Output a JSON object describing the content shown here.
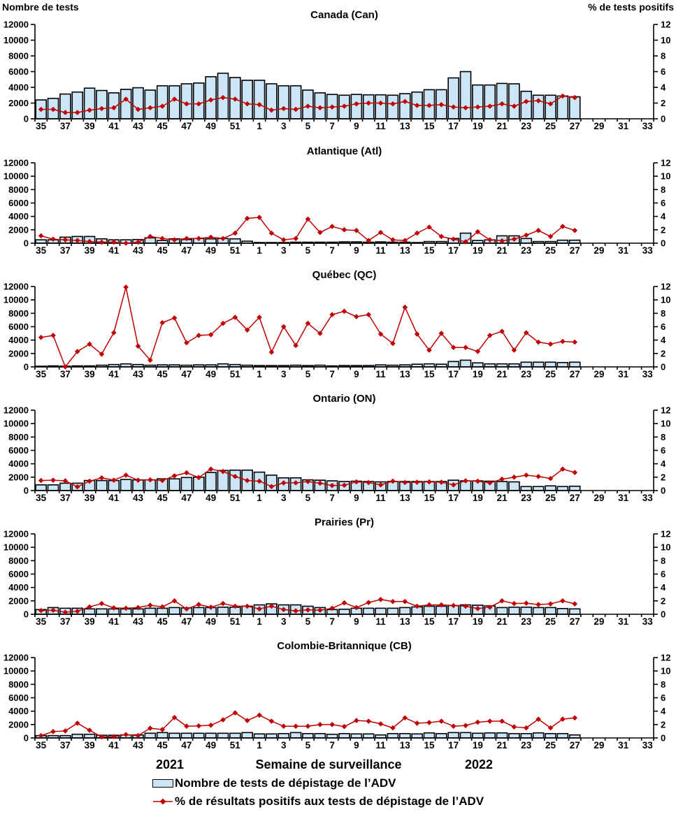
{
  "header": {
    "left_axis_title": "Nombre de tests",
    "right_axis_title": "% de tests positifs"
  },
  "footer": {
    "year_left": "2021",
    "x_axis_title": "Semaine de surveillance",
    "year_right": "2022"
  },
  "legend": {
    "bars_label": "Nombre de tests de dépistage de l’ADV",
    "line_label": "% de résultats positifs aux tests de dépistage de l’ADV"
  },
  "colors": {
    "bar_fill": "#CCE5F7",
    "bar_stroke": "#000000",
    "line": "#C00000",
    "axis": "#000000",
    "text": "#000000"
  },
  "chart_data": {
    "type": "multi-panel bar+line combo",
    "categories": [
      "35",
      "36",
      "37",
      "38",
      "39",
      "40",
      "41",
      "42",
      "43",
      "44",
      "45",
      "46",
      "47",
      "48",
      "49",
      "50",
      "51",
      "52",
      "1",
      "2",
      "3",
      "4",
      "5",
      "6",
      "7",
      "8",
      "9",
      "10",
      "11",
      "12",
      "13",
      "14",
      "15",
      "16",
      "17",
      "18",
      "19",
      "20",
      "21",
      "22",
      "23",
      "24",
      "25",
      "26",
      "27",
      "28",
      "29",
      "30",
      "31",
      "32",
      "33"
    ],
    "category_label_step": 2,
    "left_ylabel": "Nombre de tests",
    "right_ylabel": "% de tests positifs",
    "left_ylim": [
      0,
      12000
    ],
    "right_ylim": [
      0,
      12
    ],
    "left_yticks": [
      0,
      2000,
      4000,
      6000,
      8000,
      10000,
      12000
    ],
    "right_yticks": [
      0,
      2,
      4,
      6,
      8,
      10,
      12
    ],
    "grid": false,
    "panels": [
      {
        "title": "Canada (Can)",
        "series": [
          {
            "name": "Nombre de tests de dépistage de l’ADV",
            "type": "bar",
            "axis": "left",
            "values": [
              2400,
              2600,
              3150,
              3400,
              3900,
              3600,
              3300,
              3750,
              3950,
              3650,
              4200,
              4200,
              4450,
              4550,
              5350,
              5800,
              5250,
              4900,
              4900,
              4450,
              4200,
              4200,
              3650,
              3300,
              3100,
              3000,
              3100,
              3050,
              3050,
              3000,
              3200,
              3400,
              3700,
              3700,
              5200,
              6000,
              4300,
              4300,
              4500,
              4450,
              3500,
              3000,
              3000,
              2900,
              2800
            ]
          },
          {
            "name": "% de résultats positifs aux tests de dépistage de l’ADV",
            "type": "line",
            "axis": "right",
            "values": [
              1.2,
              1.2,
              0.8,
              0.8,
              1.1,
              1.3,
              1.4,
              2.5,
              1.2,
              1.4,
              1.6,
              2.5,
              1.9,
              1.9,
              2.4,
              2.7,
              2.5,
              1.9,
              1.8,
              1.1,
              1.3,
              1.2,
              1.6,
              1.4,
              1.5,
              1.6,
              1.9,
              2.0,
              2.0,
              1.9,
              2.2,
              1.7,
              1.7,
              1.8,
              1.5,
              1.4,
              1.5,
              1.6,
              1.9,
              1.6,
              2.2,
              2.3,
              1.9,
              2.9,
              2.7
            ]
          }
        ]
      },
      {
        "title": "Atlantique (Atl)",
        "series": [
          {
            "name": "Nombre de tests de dépistage de l’ADV",
            "type": "bar",
            "axis": "left",
            "values": [
              500,
              500,
              900,
              1000,
              1000,
              650,
              500,
              500,
              550,
              800,
              400,
              650,
              550,
              700,
              650,
              700,
              650,
              300,
              100,
              100,
              100,
              150,
              150,
              150,
              150,
              200,
              200,
              150,
              200,
              150,
              150,
              100,
              250,
              250,
              700,
              1500,
              400,
              500,
              1100,
              1100,
              700,
              250,
              250,
              450,
              450
            ]
          },
          {
            "name": "% de résultats positifs aux tests de dépistage de l’ADV",
            "type": "line",
            "axis": "right",
            "values": [
              1.1,
              0.6,
              0.5,
              0.4,
              0.25,
              0.15,
              0.15,
              0,
              0.15,
              1.0,
              0.7,
              0.5,
              0.7,
              0.7,
              0.9,
              0.7,
              1.5,
              3.7,
              3.85,
              1.5,
              0.5,
              0.7,
              3.6,
              1.6,
              2.5,
              2.0,
              1.9,
              0.4,
              1.6,
              0.5,
              0.4,
              1.5,
              2.4,
              1.0,
              0.6,
              0.2,
              1.7,
              0.5,
              0.35,
              0.6,
              1.2,
              1.9,
              1.0,
              2.5,
              1.9
            ]
          }
        ]
      },
      {
        "title": "Québec (QC)",
        "series": [
          {
            "name": "Nombre de tests de dépistage de l’ADV",
            "type": "bar",
            "axis": "left",
            "values": [
              100,
              150,
              100,
              150,
              150,
              250,
              350,
              450,
              350,
              250,
              300,
              300,
              250,
              300,
              300,
              450,
              350,
              250,
              200,
              200,
              200,
              250,
              200,
              250,
              150,
              200,
              200,
              200,
              300,
              250,
              300,
              400,
              450,
              400,
              800,
              1000,
              600,
              450,
              450,
              450,
              700,
              700,
              700,
              650,
              700
            ]
          },
          {
            "name": "% de résultats positifs aux tests de dépistage de l’ADV",
            "type": "line",
            "axis": "right",
            "values": [
              4.4,
              4.7,
              0,
              2.3,
              3.4,
              1.9,
              5.1,
              11.9,
              3.1,
              1.0,
              6.6,
              7.3,
              3.6,
              4.7,
              4.8,
              6.5,
              7.4,
              5.5,
              7.4,
              2.2,
              6.0,
              3.2,
              6.5,
              5.0,
              7.8,
              8.3,
              7.5,
              7.8,
              4.9,
              3.5,
              8.9,
              4.9,
              2.5,
              5.0,
              2.9,
              2.9,
              2.3,
              4.7,
              5.3,
              2.5,
              5.1,
              3.7,
              3.4,
              3.8,
              3.7
            ]
          }
        ]
      },
      {
        "title": "Ontario (ON)",
        "series": [
          {
            "name": "Nombre de tests de dépistage de l’ADV",
            "type": "bar",
            "axis": "left",
            "values": [
              850,
              850,
              1100,
              1100,
              1500,
              1500,
              1500,
              1650,
              1600,
              1600,
              1750,
              1750,
              1950,
              2000,
              2700,
              3000,
              3050,
              3050,
              2750,
              2300,
              1900,
              1900,
              1600,
              1550,
              1450,
              1350,
              1400,
              1350,
              1300,
              1350,
              1350,
              1350,
              1350,
              1350,
              1550,
              1450,
              1450,
              1400,
              1350,
              1300,
              600,
              600,
              700,
              600,
              650
            ]
          },
          {
            "name": "% de résultats positifs aux tests de dépistage de l’ADV",
            "type": "line",
            "axis": "right",
            "values": [
              1.5,
              1.55,
              1.45,
              0.55,
              1.4,
              1.9,
              1.55,
              2.3,
              1.55,
              1.6,
              1.5,
              2.2,
              2.65,
              1.95,
              3.2,
              2.85,
              2.1,
              1.5,
              1.4,
              0.6,
              1.15,
              1.15,
              1.35,
              1.1,
              0.75,
              0.8,
              1.3,
              1.2,
              0.85,
              1.4,
              1.2,
              1.25,
              1.3,
              1.25,
              0.85,
              1.45,
              1.4,
              1.15,
              1.7,
              2.0,
              2.3,
              2.1,
              1.8,
              3.2,
              2.7
            ]
          }
        ]
      },
      {
        "title": "Prairies (Pr)",
        "series": [
          {
            "name": "Nombre de tests de dépistage de l’ADV",
            "type": "bar",
            "axis": "left",
            "values": [
              700,
              1000,
              900,
              900,
              800,
              800,
              800,
              800,
              800,
              900,
              900,
              1000,
              950,
              1000,
              1000,
              1050,
              1050,
              1200,
              1400,
              1550,
              1400,
              1400,
              1200,
              1000,
              700,
              750,
              900,
              900,
              900,
              900,
              1000,
              1100,
              1200,
              1200,
              1300,
              1400,
              1350,
              1250,
              1000,
              1050,
              1050,
              1000,
              1000,
              850,
              800
            ]
          },
          {
            "name": "% de résultats positifs aux tests de dépistage de l’ADV",
            "type": "line",
            "axis": "right",
            "values": [
              0.55,
              0.6,
              0.3,
              0.45,
              1.1,
              1.6,
              0.95,
              0.9,
              1.0,
              1.35,
              1.1,
              2.0,
              0.8,
              1.45,
              1.05,
              1.6,
              1.2,
              1.2,
              0.8,
              1.2,
              0.7,
              0.5,
              0.65,
              0.6,
              0.9,
              1.7,
              1.0,
              1.75,
              2.2,
              1.9,
              1.9,
              1.2,
              1.4,
              1.4,
              1.3,
              1.2,
              0.85,
              1.05,
              2.0,
              1.6,
              1.65,
              1.45,
              1.55,
              2.0,
              1.55
            ]
          }
        ]
      },
      {
        "title": "Colombie-Britannique (CB)",
        "series": [
          {
            "name": "Nombre de tests de dépistage de l’ADV",
            "type": "bar",
            "axis": "left",
            "values": [
              350,
              350,
              350,
              550,
              550,
              400,
              400,
              450,
              450,
              700,
              800,
              700,
              700,
              700,
              700,
              700,
              700,
              800,
              600,
              600,
              650,
              800,
              650,
              650,
              550,
              650,
              600,
              600,
              450,
              650,
              650,
              600,
              750,
              650,
              800,
              800,
              700,
              750,
              750,
              650,
              650,
              750,
              650,
              650,
              450
            ]
          },
          {
            "name": "% de résultats positifs aux tests de dépistage de l’ADV",
            "type": "line",
            "axis": "right",
            "values": [
              0.35,
              0.95,
              1.05,
              2.2,
              1.15,
              0.15,
              0.2,
              0.5,
              0.35,
              1.45,
              1.25,
              3.05,
              1.75,
              1.8,
              1.9,
              2.7,
              3.75,
              2.6,
              3.4,
              2.5,
              1.75,
              1.75,
              1.75,
              2.0,
              2.0,
              1.7,
              2.6,
              2.5,
              2.1,
              1.5,
              3.0,
              2.2,
              2.3,
              2.5,
              1.75,
              1.85,
              2.35,
              2.5,
              2.5,
              1.65,
              1.5,
              2.8,
              1.5,
              2.8,
              3.0
            ]
          }
        ]
      }
    ]
  }
}
